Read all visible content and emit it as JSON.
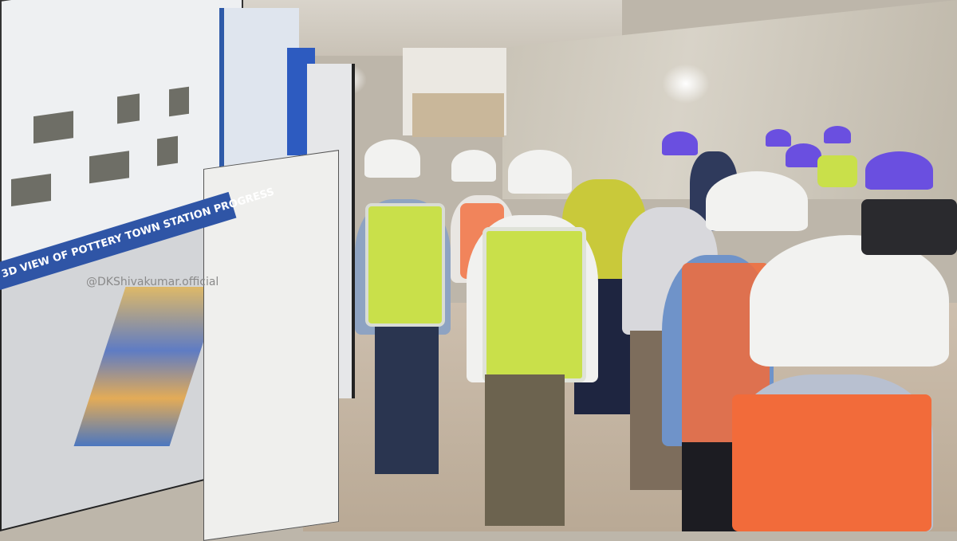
{
  "scene": {
    "board_banner": "3D VIEW OF POTTERY TOWN STATION PROGRESS",
    "watermark": "@DKShivakumar.official",
    "colors": {
      "banner": "#2f55a6",
      "safety_vest_green": "#c9e04a",
      "safety_vest_orange": "#f26b3a",
      "helmet_white": "#f2f2f0",
      "helmet_purple": "#6a4fe0"
    }
  }
}
